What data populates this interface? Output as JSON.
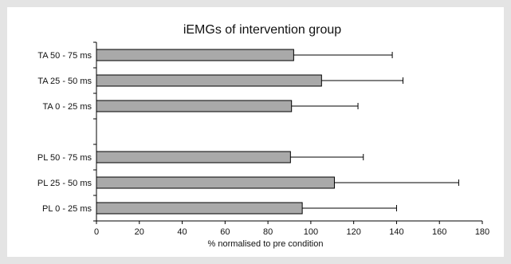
{
  "chart_data": {
    "type": "bar",
    "orientation": "horizontal",
    "title": "iEMGs of intervention group",
    "xlabel": "% normalised to pre condition",
    "ylabel": "",
    "xlim": [
      0,
      180
    ],
    "xticks": [
      0,
      20,
      40,
      60,
      80,
      100,
      120,
      140,
      160,
      180
    ],
    "categories": [
      "TA  50 - 75 ms",
      "TA 25 - 50 ms",
      "TA 0 - 25 ms",
      "",
      "PL 50 - 75 ms",
      "PL 25 - 50 ms",
      "PL 0 - 25 ms"
    ],
    "values": [
      92,
      105,
      91,
      null,
      90.5,
      111,
      96
    ],
    "error_plus": [
      46,
      38,
      31,
      null,
      34,
      58,
      44
    ],
    "bar_color": "#a9a9a9",
    "grid": false,
    "legend": "none"
  }
}
